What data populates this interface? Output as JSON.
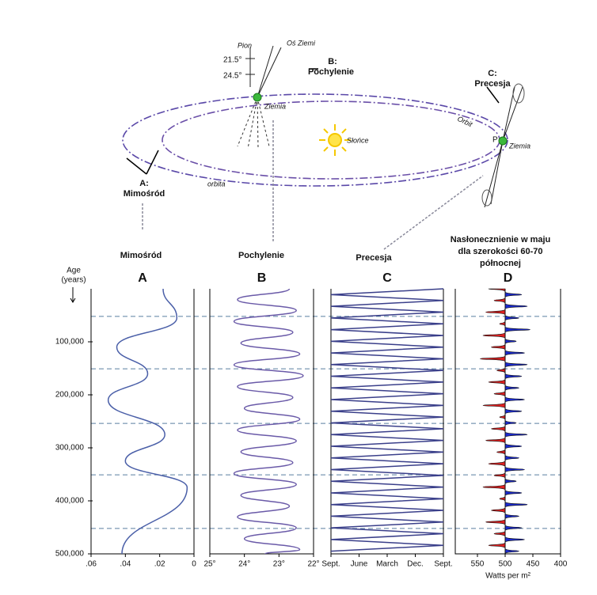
{
  "diagram": {
    "pion": "Pion",
    "os_ziemi": "Oś Ziemi",
    "angle_1": "21.5°",
    "angle_2": "24.5°",
    "b_letter": "B:",
    "b_name": "Pochylenie",
    "earth_b": "Ziemia",
    "sun": "Słońce",
    "orbit_label": "Orbit",
    "c_letter": "C:",
    "c_name": "Precesja",
    "p_label": "P",
    "earth_c": "Ziemia",
    "a_letter": "A:",
    "a_name": "Mimośród",
    "orbita": "orbita",
    "bottom_a": "Mimośród",
    "bottom_b": "Pochylenie",
    "bottom_c": "Precesja",
    "insolation": [
      "Nasłonecznienie w maju",
      "dla szerokości 60-70",
      "północnej"
    ],
    "age_label": [
      "Age",
      "(years)"
    ]
  },
  "chart_data": [
    {
      "type": "line",
      "smooth": true,
      "title": "A",
      "color": "#4a5fa8",
      "x": [
        0,
        55000,
        110000,
        160000,
        210000,
        275000,
        325000,
        375000,
        500000
      ],
      "values": [
        0.018,
        0.01,
        0.045,
        0.027,
        0.05,
        0.017,
        0.04,
        0.004,
        0.042
      ],
      "xlim": [
        0,
        500000
      ],
      "xticks": [
        {
          "value": 100000,
          "label": "100,000"
        },
        {
          "value": 200000,
          "label": "200,000"
        },
        {
          "value": 300000,
          "label": "300,000"
        },
        {
          "value": 400000,
          "label": "400,000"
        },
        {
          "value": 500000,
          "label": "500,000"
        }
      ],
      "reference_lines": [
        52000,
        151000,
        254000,
        351000,
        452000
      ],
      "ylim": [
        0.06,
        0
      ],
      "yticks": [
        {
          "value": 0.06,
          "label": ".06"
        },
        {
          "value": 0.04,
          "label": ".04"
        },
        {
          "value": 0.02,
          "label": ".02"
        },
        0
      ]
    },
    {
      "type": "line",
      "smooth": true,
      "title": "B",
      "color": "#6a5aa8",
      "x": [
        0,
        20500,
        41000,
        61500,
        82000,
        102500,
        123000,
        143500,
        164000,
        184500,
        205000,
        225500,
        246000,
        266500,
        287000,
        307500,
        328000,
        348500,
        369000,
        389500,
        410000,
        430500,
        451000,
        471500,
        492000,
        500000
      ],
      "values": [
        22.7,
        24.2,
        22.5,
        24.3,
        22.6,
        24.1,
        22.4,
        24.3,
        22.3,
        24.2,
        22.6,
        24.0,
        22.4,
        24.2,
        22.5,
        24.1,
        22.6,
        24.3,
        22.5,
        24.1,
        22.7,
        24.2,
        22.5,
        24.0,
        22.4,
        23.4
      ],
      "ylim": [
        25,
        22
      ],
      "yticks": [
        {
          "value": 25,
          "label": "25°"
        },
        {
          "value": 24,
          "label": "24°"
        },
        {
          "value": 23,
          "label": "23°"
        },
        {
          "value": 22,
          "label": "22°"
        }
      ]
    },
    {
      "type": "line",
      "smooth": false,
      "title": "C",
      "color": "#3a3f8a",
      "x": [
        0,
        11000,
        22000,
        33000,
        44000,
        55000,
        66000,
        77000,
        88000,
        99000,
        110000,
        121000,
        132000,
        143000,
        154000,
        165000,
        176000,
        187000,
        198000,
        209000,
        220000,
        231000,
        242000,
        253000,
        264000,
        275000,
        286000,
        297000,
        308000,
        319000,
        330000,
        341000,
        352000,
        363000,
        374000,
        385000,
        396000,
        407000,
        418000,
        429000,
        440000,
        451000,
        462000,
        473000,
        484000,
        495000
      ],
      "values": [
        4,
        0,
        4,
        0,
        4,
        0,
        4,
        0,
        4,
        0,
        4,
        0,
        4,
        0,
        4,
        0,
        4,
        0,
        4,
        0,
        4,
        0,
        4,
        0,
        4,
        0,
        4,
        0,
        4,
        0,
        4,
        0,
        4,
        0,
        4,
        0,
        4,
        0,
        4,
        0,
        4,
        0,
        4,
        0,
        4,
        0
      ],
      "ylim": [
        0,
        4
      ],
      "yticks": [
        {
          "value": 0,
          "label": "Sept."
        },
        {
          "value": 1,
          "label": "June"
        },
        {
          "value": 2,
          "label": "March"
        },
        {
          "value": 3,
          "label": "Dec."
        },
        {
          "value": 4,
          "label": "Sept."
        }
      ]
    },
    {
      "type": "area",
      "title": "D",
      "xlabel": "Watts per m²",
      "baseline": 500,
      "colors": {
        "above": "#e02020",
        "below": "#1a2ad0"
      },
      "x": [
        0,
        11000,
        22000,
        33000,
        44000,
        55000,
        66000,
        77000,
        88000,
        99000,
        110000,
        121000,
        132000,
        143000,
        154000,
        165000,
        176000,
        187000,
        198000,
        209000,
        220000,
        231000,
        242000,
        253000,
        264000,
        275000,
        286000,
        297000,
        308000,
        319000,
        330000,
        341000,
        352000,
        363000,
        374000,
        385000,
        396000,
        407000,
        418000,
        429000,
        440000,
        451000,
        462000,
        473000,
        484000,
        495000
      ],
      "values": [
        530,
        470,
        520,
        460,
        535,
        475,
        510,
        455,
        540,
        480,
        525,
        465,
        545,
        460,
        515,
        470,
        530,
        475,
        520,
        465,
        540,
        470,
        510,
        480,
        525,
        460,
        535,
        470,
        515,
        475,
        530,
        465,
        520,
        480,
        540,
        470,
        510,
        460,
        525,
        475,
        535,
        470,
        520,
        465,
        530,
        475
      ],
      "ylim": [
        590,
        400
      ],
      "yticks": [
        550,
        500,
        450,
        400
      ]
    }
  ]
}
